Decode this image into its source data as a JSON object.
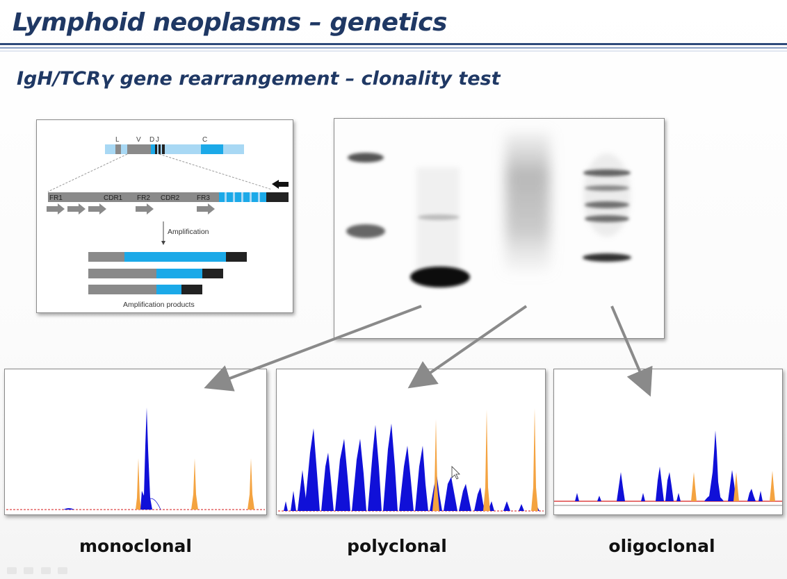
{
  "slide": {
    "title": "Lymphoid neoplasms – genetics",
    "subtitle": "IgH/TCRγ gene rearrangement – clonality test"
  },
  "diagram": {
    "segment_labels": [
      "L",
      "V",
      "D",
      "J",
      "C"
    ],
    "framework_labels": [
      "FR1",
      "CDR1",
      "FR2",
      "CDR2",
      "FR3"
    ],
    "amplification_label": "Amplification",
    "products_label": "Amplification products"
  },
  "captions": {
    "monoclonal": "monoclonal",
    "polyclonal": "polyclonal",
    "oligoclonal": "oligoclonal"
  },
  "colors": {
    "title": "#1f3864",
    "sample_peaks": "#1010d8",
    "size_standard_peaks": "#f4a340",
    "gene_light": "#a8d8f4",
    "gene_cyan": "#1ba9e8",
    "gene_gray": "#8a8a8a",
    "gene_dark": "#222222"
  }
}
